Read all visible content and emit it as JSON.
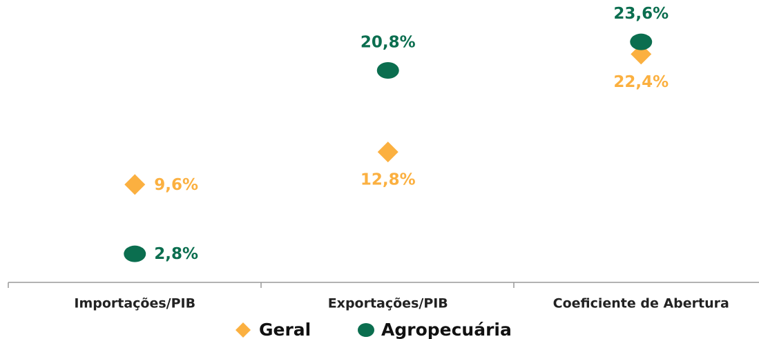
{
  "chart_data": {
    "type": "dot",
    "categories": [
      "Importações/PIB",
      "Exportações/PIB",
      "Coeficiente de Abertura"
    ],
    "series": [
      {
        "name": "Geral",
        "color": "#fbb040",
        "values": [
          9.6,
          12.8,
          22.4
        ],
        "value_labels": [
          "9,6%",
          "12,8%",
          "22,4%"
        ]
      },
      {
        "name": "Agropecuária",
        "color": "#0b6e4f",
        "values": [
          2.8,
          20.8,
          23.6
        ],
        "value_labels": [
          "2,8%",
          "20,8%",
          "23,6%"
        ]
      }
    ],
    "ylim": [
      0,
      25
    ],
    "legend": "bottom"
  }
}
